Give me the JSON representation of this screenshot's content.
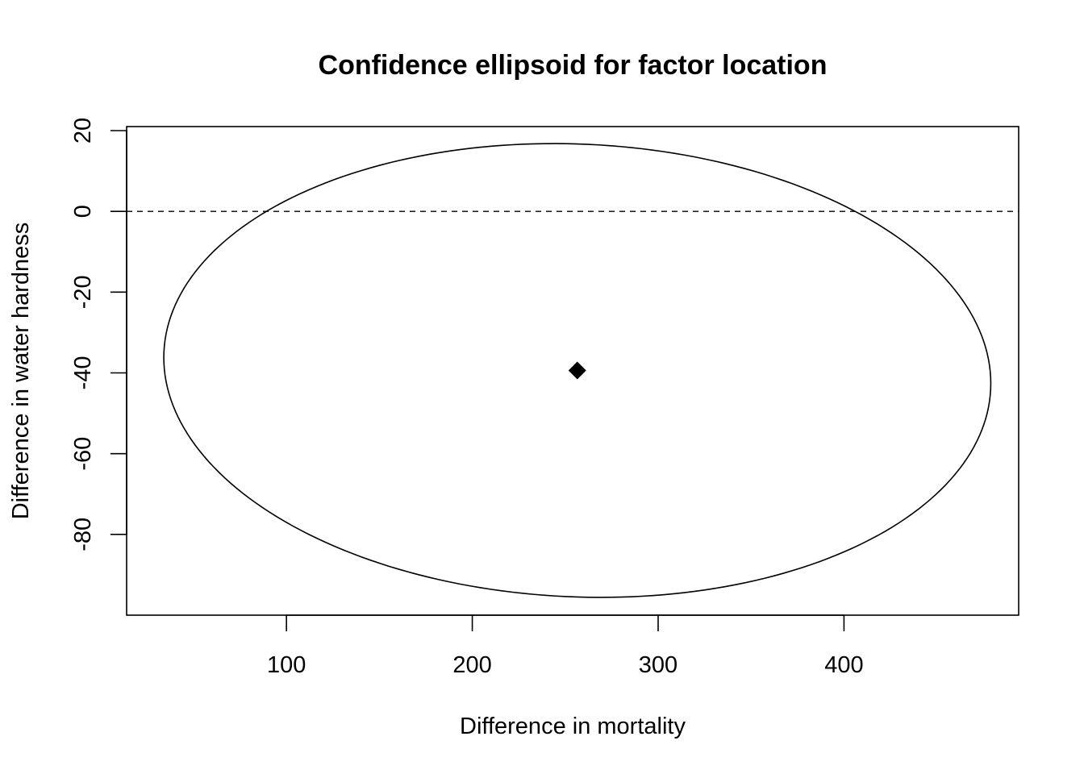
{
  "chart_data": {
    "type": "scatter",
    "title": "Confidence ellipsoid for factor location",
    "xlabel": "Difference in mortality",
    "ylabel": "Difference in water hardness",
    "xlim": [
      14,
      494
    ],
    "ylim": [
      -100,
      21
    ],
    "x_ticks": [
      100,
      200,
      300,
      400
    ],
    "y_ticks": [
      20,
      0,
      -20,
      -40,
      -60,
      -80
    ],
    "point": {
      "x": 256.5,
      "y": -39.4,
      "marker": "filled-diamond"
    },
    "ellipse": {
      "center": [
        256.5,
        -39.4
      ],
      "x_extent": [
        34,
        479
      ],
      "y_extent": [
        -95.5,
        16.7
      ],
      "tilt": "slight"
    },
    "reference_line": {
      "y": 0,
      "style": "dashed"
    },
    "grid": false,
    "legend": "none",
    "colors": {
      "line": "#000000",
      "background": "#ffffff"
    }
  }
}
